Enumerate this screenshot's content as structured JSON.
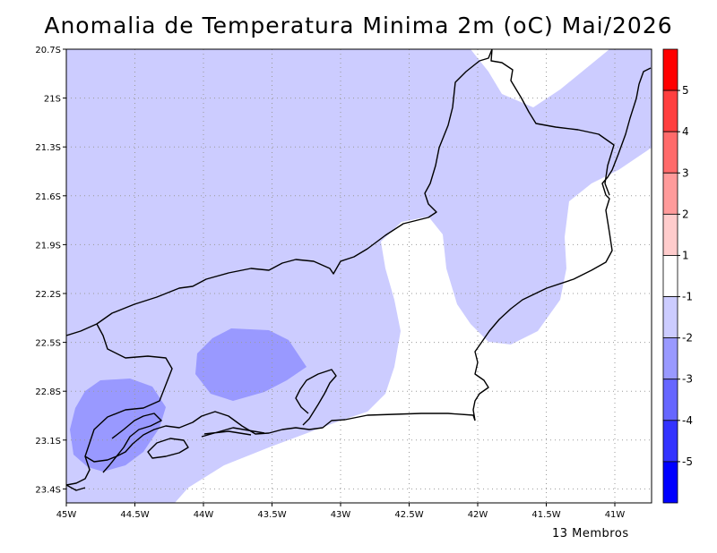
{
  "title": "Anomalia de Temperatura Minima 2m (oC) Mai/2026",
  "footer": {
    "members": "13 Membros"
  },
  "axes": {
    "lon_labels": [
      "45W",
      "44.5W",
      "44W",
      "43.5W",
      "43W",
      "42.5W",
      "42W",
      "41.5W",
      "41W"
    ],
    "lat_labels": [
      "20.7S",
      "21S",
      "21.3S",
      "21.6S",
      "21.9S",
      "22.2S",
      "22.5S",
      "22.8S",
      "23.1S",
      "23.4S"
    ]
  },
  "colorbar": {
    "labels": [
      "5",
      "4",
      "3",
      "2",
      "1",
      "-1",
      "-2",
      "-3",
      "-4",
      "-5"
    ],
    "colors": [
      "#ff0000",
      "#ff3f3f",
      "#ff6b6b",
      "#ff9b9b",
      "#ffcccc",
      "#ffffff",
      "#ccccff",
      "#9999ff",
      "#6666ff",
      "#3333ff",
      "#0000ff"
    ]
  },
  "shading": {
    "band_minus1_minus2": "#ccccff",
    "band_minus2_minus3": "#9999ff",
    "background": "#ffffff"
  },
  "grid": true
}
